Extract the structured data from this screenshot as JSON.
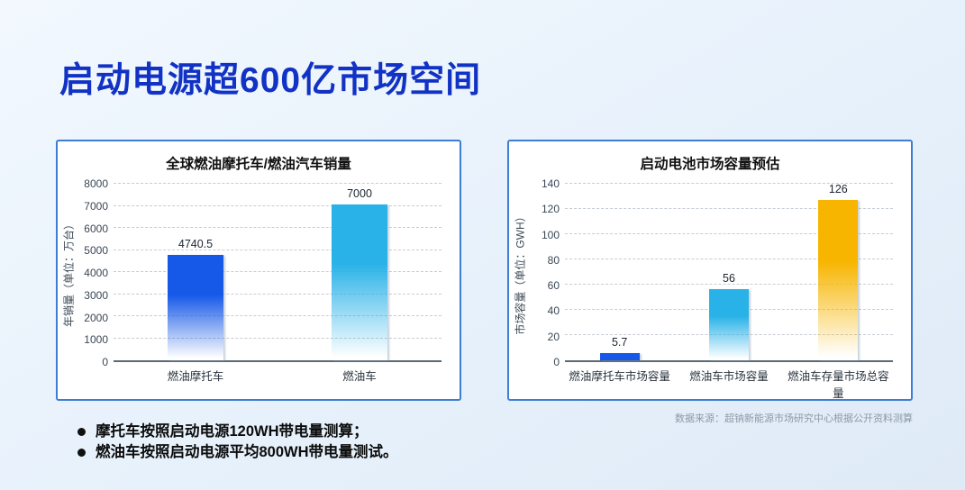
{
  "page": {
    "title": "启动电源超600亿市场空间",
    "source_note": "数据来源：超钠新能源市场研究中心根据公开资料测算",
    "notes": [
      "摩托车按照启动电源120WH带电量测算；",
      "燃油车按照启动电源平均800WH带电量测试。"
    ],
    "colors": {
      "title": "#1132c4",
      "card_border": "#3d7ed3",
      "background_start": "#f2f8fe",
      "background_end": "#dfeaf7",
      "grid": "#c6ccd4",
      "axis": "#5d6974",
      "source_text": "#8d99a7"
    }
  },
  "chart_data": [
    {
      "type": "bar",
      "title": "全球燃油摩托车/燃油汽车销量",
      "xlabel": "",
      "ylabel": "年销量（单位：万台）",
      "categories": [
        "燃油摩托车",
        "燃油车"
      ],
      "values": [
        4740.5,
        7000
      ],
      "value_labels": [
        "4740.5",
        "7000"
      ],
      "bar_colors": [
        "#1659e8",
        "#29b2e8"
      ],
      "ylim": [
        0,
        8000
      ],
      "ytick_step": 1000,
      "grid": true,
      "legend_position": "none"
    },
    {
      "type": "bar",
      "title": "启动电池市场容量预估",
      "xlabel": "",
      "ylabel": "市场容量（单位：GWH）",
      "categories": [
        "燃油摩托车市场容量",
        "燃油车市场容量",
        "燃油车存量市场总容量"
      ],
      "values": [
        5.7,
        56,
        126
      ],
      "value_labels": [
        "5.7",
        "56",
        "126"
      ],
      "bar_colors": [
        "#1659e8",
        "#29b2e8",
        "#f7b500"
      ],
      "ylim": [
        0,
        140
      ],
      "ytick_step": 20,
      "grid": true,
      "legend_position": "none"
    }
  ]
}
